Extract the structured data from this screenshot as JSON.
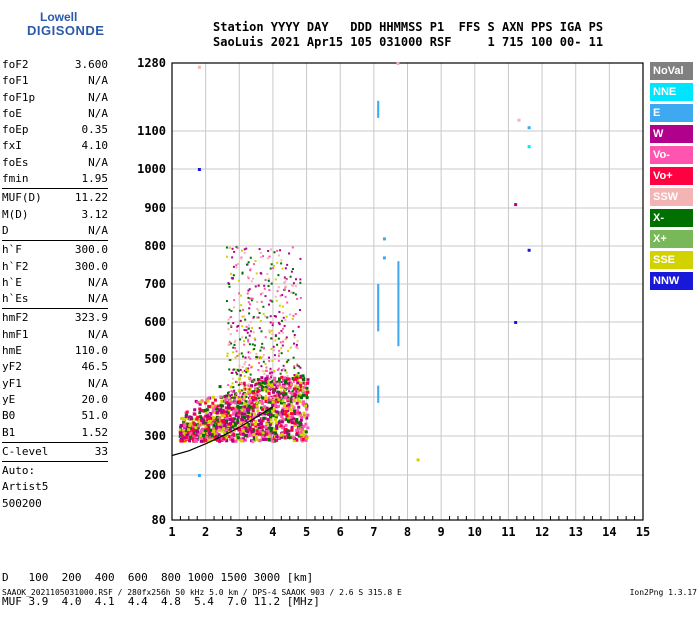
{
  "logo": {
    "line1": "Lowell",
    "line2": "DIGISONDE"
  },
  "header": {
    "line1": "Station YYYY DAY   DDD HHMMSS P1  FFS S AXN PPS IGA PS",
    "line2": "SaoLuis 2021 Apr15 105 031000 RSF     1 715 100 00- 11"
  },
  "params": [
    {
      "name": "foF2",
      "value": "3.600"
    },
    {
      "name": "foF1",
      "value": "N/A"
    },
    {
      "name": "foF1p",
      "value": "N/A"
    },
    {
      "name": "foE",
      "value": "N/A"
    },
    {
      "name": "foEp",
      "value": "0.35"
    },
    {
      "name": "fxI",
      "value": "4.10"
    },
    {
      "name": "foEs",
      "value": "N/A"
    },
    {
      "name": "fmin",
      "value": "1.95"
    },
    {
      "sep": true
    },
    {
      "name": "MUF(D)",
      "value": "11.22"
    },
    {
      "name": "M(D)",
      "value": "3.12"
    },
    {
      "name": "D",
      "value": "N/A"
    },
    {
      "sep": true
    },
    {
      "name": "h`F",
      "value": "300.0"
    },
    {
      "name": "h`F2",
      "value": "300.0"
    },
    {
      "name": "h`E",
      "value": "N/A"
    },
    {
      "name": "h`Es",
      "value": "N/A"
    },
    {
      "sep": true
    },
    {
      "name": "hmF2",
      "value": "323.9"
    },
    {
      "name": "hmF1",
      "value": "N/A"
    },
    {
      "name": "hmE",
      "value": "110.0"
    },
    {
      "name": "yF2",
      "value": "46.5"
    },
    {
      "name": "yF1",
      "value": "N/A"
    },
    {
      "name": "yE",
      "value": "20.0"
    },
    {
      "name": "B0",
      "value": "51.0"
    },
    {
      "name": "B1",
      "value": "1.52"
    },
    {
      "sep": true
    },
    {
      "name": "C-level",
      "value": "33"
    },
    {
      "sep": true
    },
    {
      "name": "Auto:",
      "value": ""
    },
    {
      "name": "Artist5",
      "value": ""
    },
    {
      "name": "500200",
      "value": ""
    }
  ],
  "legend": [
    {
      "label": "NoVal",
      "color": "#808080"
    },
    {
      "label": "NNE",
      "color": "#00e5ff"
    },
    {
      "label": "E",
      "color": "#3ea8f0"
    },
    {
      "label": "W",
      "color": "#b0008c"
    },
    {
      "label": "Vo-",
      "color": "#ff55b0"
    },
    {
      "label": "Vo+",
      "color": "#ff0040"
    },
    {
      "label": "SSW",
      "color": "#f4b4b4"
    },
    {
      "label": "X-",
      "color": "#007000"
    },
    {
      "label": "X+",
      "color": "#78b858"
    },
    {
      "label": "SSE",
      "color": "#d2d200"
    },
    {
      "label": "NNW",
      "color": "#1818d8"
    }
  ],
  "muf_table": {
    "d_label": "D  ",
    "d_values": "100  200  400  600  800 1000 1500 3000 [km]",
    "muf_label": "MUF",
    "muf_values": "3.9  4.0  4.1  4.4  4.8  5.4  7.0 11.2 [MHz]"
  },
  "footer": {
    "left": "SAAOK_2021105031000.RSF / 280fx256h 50 kHz 5.0 km / DPS-4 SAAOK 903 / 2.6 S 315.8 E",
    "right": "Ion2Png 1.3.17"
  },
  "chart_data": {
    "type": "scatter",
    "x_ticks": [
      1,
      2,
      3,
      4,
      5,
      6,
      7,
      8,
      9,
      10,
      11,
      12,
      13,
      14,
      15
    ],
    "y_ticks": [
      80,
      200,
      300,
      400,
      500,
      600,
      700,
      800,
      900,
      1000,
      1100,
      1280
    ],
    "xlim": [
      1,
      15
    ],
    "ylim": [
      80,
      1280
    ],
    "y_scale": "nonlinear (virtual height, km)",
    "grid": true,
    "legend_position": "right",
    "trace_curve": {
      "x": [
        1.0,
        1.5,
        2.0,
        2.5,
        3.0,
        3.5,
        4.0
      ],
      "y": [
        250,
        262,
        280,
        300,
        322,
        348,
        375
      ]
    },
    "clusters": [
      {
        "x": [
          1.2,
          5.0
        ],
        "y": [
          290,
          460
        ],
        "density": "high",
        "colors": [
          "#b0008c",
          "#ff0040",
          "#d2d200",
          "#007000",
          "#ff55b0"
        ]
      },
      {
        "x": [
          2.6,
          4.8
        ],
        "y": [
          400,
          800
        ],
        "density": "medium",
        "colors": [
          "#b0008c",
          "#d2d200",
          "#007000",
          "#ff55b0",
          "#f4b4b4"
        ]
      }
    ],
    "vertical_traces": [
      {
        "x": 7.1,
        "y": [
          580,
          700
        ],
        "color": "#3ea8f0"
      },
      {
        "x": 7.1,
        "y": [
          390,
          430
        ],
        "color": "#3ea8f0"
      },
      {
        "x": 7.1,
        "y": [
          1140,
          1180
        ],
        "color": "#3ea8f0"
      },
      {
        "x": 7.7,
        "y": [
          540,
          760
        ],
        "color": "#3ea8f0"
      }
    ],
    "isolated_points": [
      {
        "x": 1.8,
        "y": 1000,
        "color": "#1818d8"
      },
      {
        "x": 11.2,
        "y": 910,
        "color": "#b0008c"
      },
      {
        "x": 11.6,
        "y": 790,
        "color": "#1818d8"
      },
      {
        "x": 11.2,
        "y": 600,
        "color": "#1818d8"
      },
      {
        "x": 11.6,
        "y": 1110,
        "color": "#3ea8f0"
      },
      {
        "x": 11.6,
        "y": 1060,
        "color": "#00e5ff"
      },
      {
        "x": 11.3,
        "y": 1130,
        "color": "#f4b4b4"
      },
      {
        "x": 8.3,
        "y": 240,
        "color": "#d2d200"
      },
      {
        "x": 7.7,
        "y": 1280,
        "color": "#f4b4b4"
      },
      {
        "x": 1.8,
        "y": 1270,
        "color": "#f4b4b4"
      },
      {
        "x": 1.8,
        "y": 200,
        "color": "#3ea8f0"
      },
      {
        "x": 7.3,
        "y": 770,
        "color": "#3ea8f0"
      },
      {
        "x": 7.3,
        "y": 820,
        "color": "#3ea8f0"
      }
    ]
  }
}
